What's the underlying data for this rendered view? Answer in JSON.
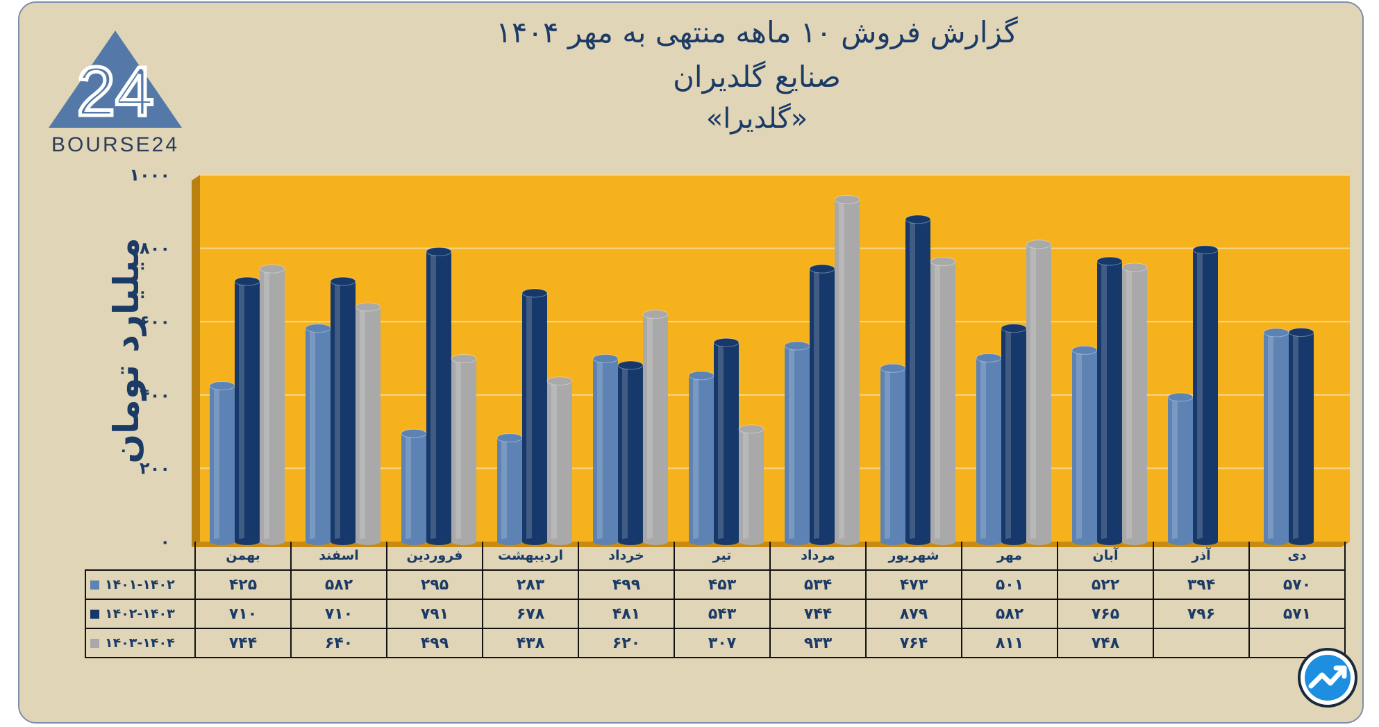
{
  "header": {
    "title_line1": "گزارش  فروش ۱۰ ماهه منتهی به مهر ۱۴۰۴",
    "title_line2": "صنایع گلدیران",
    "title_line3": "«گلدیرا»"
  },
  "logo": {
    "mark": "24",
    "text": "BOURSE24",
    "icon": "triangle-logo-icon"
  },
  "corner_icon": "trend-arrow-icon",
  "colors": {
    "plot_bg": "#f6b21d",
    "card_bg": "#e0d5b7",
    "title": "#1b3a66",
    "series_1": "#5d83b4",
    "series_2": "#16386a",
    "series_3": "#a9a9a9"
  },
  "chart_data": {
    "type": "bar",
    "title": "گزارش  فروش ۱۰ ماهه منتهی به مهر ۱۴۰۴ صنایع گلدیران «گلدیرا»",
    "xlabel": "",
    "ylabel": "میلیارد تومان",
    "ylim": [
      0,
      1000
    ],
    "y_ticks": [
      0,
      200,
      400,
      600,
      800,
      1000
    ],
    "y_tick_labels": [
      "۰",
      "۲۰۰",
      "۴۰۰",
      "۶۰۰",
      "۸۰۰",
      "۱۰۰۰"
    ],
    "grid": true,
    "legend": "table-left",
    "categories": [
      "بهمن",
      "اسفند",
      "فروردین",
      "اردیبهشت",
      "خرداد",
      "تیر",
      "مرداد",
      "شهریور",
      "مهر",
      "آبان",
      "آذر",
      "دی"
    ],
    "series": [
      {
        "name": "۱۴۰۱-۱۴۰۲",
        "values": [
          425,
          582,
          295,
          283,
          499,
          453,
          534,
          473,
          501,
          522,
          394,
          570
        ],
        "labels": [
          "۴۲۵",
          "۵۸۲",
          "۲۹۵",
          "۲۸۳",
          "۴۹۹",
          "۴۵۳",
          "۵۳۴",
          "۴۷۳",
          "۵۰۱",
          "۵۲۲",
          "۳۹۴",
          "۵۷۰"
        ]
      },
      {
        "name": "۱۴۰۲-۱۴۰۳",
        "values": [
          710,
          710,
          791,
          678,
          481,
          543,
          744,
          879,
          582,
          765,
          796,
          571
        ],
        "labels": [
          "۷۱۰",
          "۷۱۰",
          "۷۹۱",
          "۶۷۸",
          "۴۸۱",
          "۵۴۳",
          "۷۴۴",
          "۸۷۹",
          "۵۸۲",
          "۷۶۵",
          "۷۹۶",
          "۵۷۱"
        ]
      },
      {
        "name": "۱۴۰۳-۱۴۰۴",
        "values": [
          744,
          640,
          499,
          438,
          620,
          307,
          933,
          764,
          811,
          748,
          null,
          null
        ],
        "labels": [
          "۷۴۴",
          "۶۴۰",
          "۴۹۹",
          "۴۳۸",
          "۶۲۰",
          "۳۰۷",
          "۹۳۳",
          "۷۶۴",
          "۸۱۱",
          "۷۴۸",
          "",
          ""
        ]
      }
    ]
  }
}
